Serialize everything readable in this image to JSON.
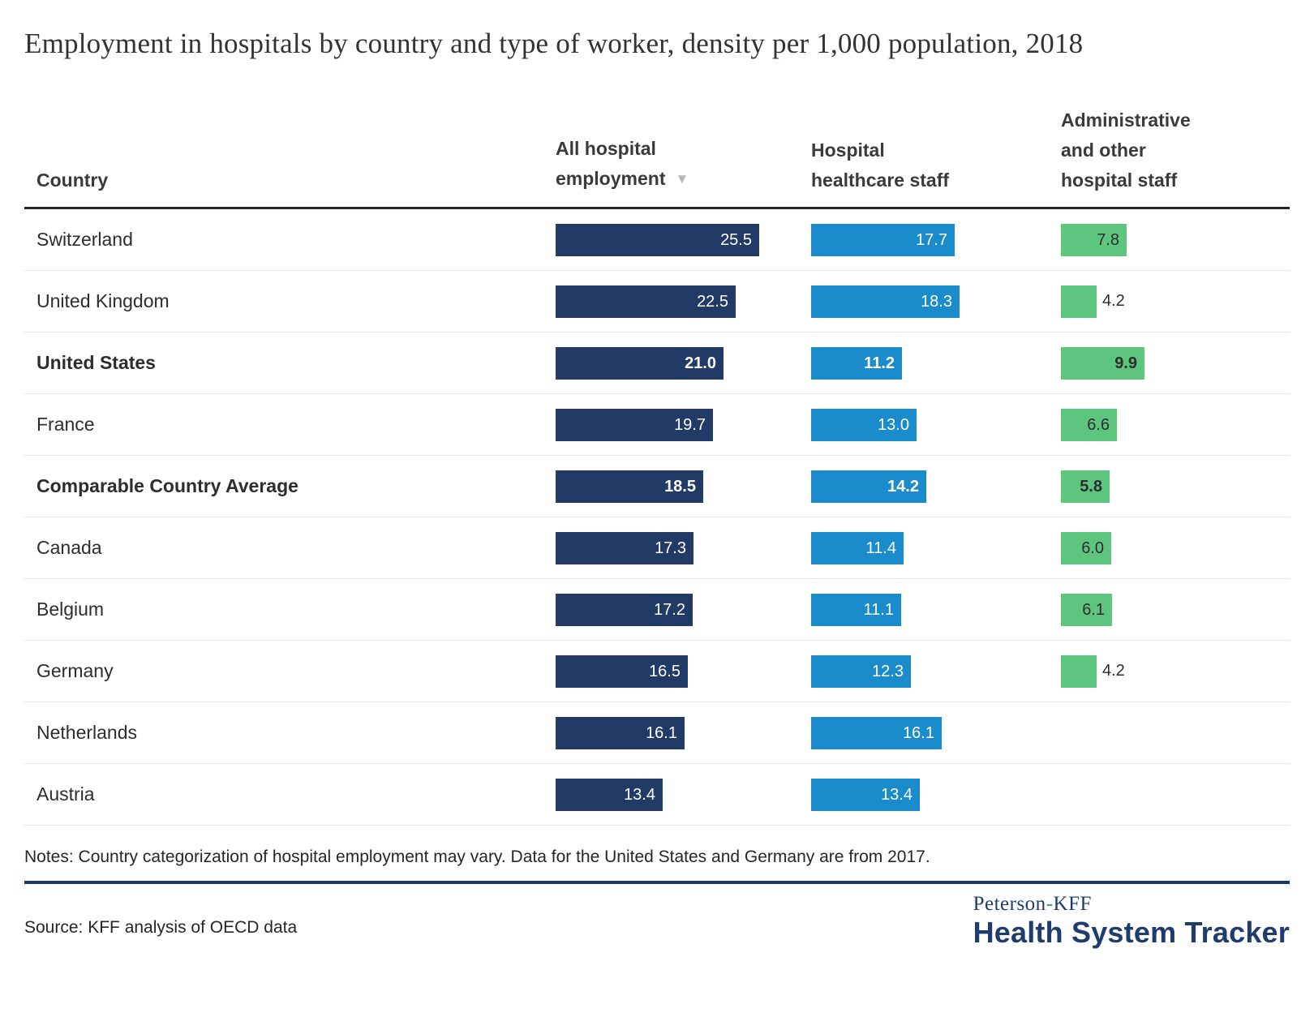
{
  "title": "Employment in hospitals by country and type of worker, density per 1,000 population, 2018",
  "icons": {
    "sort_descending": "▼"
  },
  "colors": {
    "bar_all_hospital": "#213a66",
    "bar_healthcare": "#1a8ccb",
    "bar_admin": "#5dc57e",
    "header_rule": "#272727",
    "footer_rule": "#1b3a6b",
    "logo_navy": "#1e3c6d",
    "logo_dash_green": "#43a06a"
  },
  "table": {
    "columns": [
      {
        "label": "Country"
      },
      {
        "label": "All hospital employment",
        "sorted": "descending"
      },
      {
        "label": "Hospital healthcare staff"
      },
      {
        "label": "Administrative and other hospital staff"
      }
    ],
    "rows": [
      {
        "country": "Switzerland",
        "bold": false,
        "all": 25.5,
        "healthcare": 17.7,
        "admin": 7.8
      },
      {
        "country": "United Kingdom",
        "bold": false,
        "all": 22.5,
        "healthcare": 18.3,
        "admin": 4.2
      },
      {
        "country": "United States",
        "bold": true,
        "all": 21.0,
        "healthcare": 11.2,
        "admin": 9.9
      },
      {
        "country": "France",
        "bold": false,
        "all": 19.7,
        "healthcare": 13.0,
        "admin": 6.6
      },
      {
        "country": "Comparable Country Average",
        "bold": true,
        "all": 18.5,
        "healthcare": 14.2,
        "admin": 5.8
      },
      {
        "country": "Canada",
        "bold": false,
        "all": 17.3,
        "healthcare": 11.4,
        "admin": 6.0
      },
      {
        "country": "Belgium",
        "bold": false,
        "all": 17.2,
        "healthcare": 11.1,
        "admin": 6.1
      },
      {
        "country": "Germany",
        "bold": false,
        "all": 16.5,
        "healthcare": 12.3,
        "admin": 4.2
      },
      {
        "country": "Netherlands",
        "bold": false,
        "all": 16.1,
        "healthcare": 16.1,
        "admin": null
      },
      {
        "country": "Austria",
        "bold": false,
        "all": 13.4,
        "healthcare": 13.4,
        "admin": null
      }
    ]
  },
  "notes": "Notes: Country categorization of hospital employment may vary. Data for the United States and Germany are from 2017.",
  "source": "Source: KFF analysis of OECD data",
  "logo": {
    "part1": "Peterson",
    "dash": "-",
    "part2": "KFF",
    "line2": "Health System Tracker"
  },
  "chart_data": {
    "type": "bar",
    "orientation": "horizontal",
    "title": "Employment in hospitals by country and type of worker, density per 1,000 population, 2018",
    "categories": [
      "Switzerland",
      "United Kingdom",
      "United States",
      "France",
      "Comparable Country Average",
      "Canada",
      "Belgium",
      "Germany",
      "Netherlands",
      "Austria"
    ],
    "series": [
      {
        "name": "All hospital employment",
        "color": "#213a66",
        "values": [
          25.5,
          22.5,
          21.0,
          19.7,
          18.5,
          17.3,
          17.2,
          16.5,
          16.1,
          13.4
        ]
      },
      {
        "name": "Hospital healthcare staff",
        "color": "#1a8ccb",
        "values": [
          17.7,
          18.3,
          11.2,
          13.0,
          14.2,
          11.4,
          11.1,
          12.3,
          16.1,
          13.4
        ]
      },
      {
        "name": "Administrative and other hospital staff",
        "color": "#5dc57e",
        "values": [
          7.8,
          4.2,
          9.9,
          6.6,
          5.8,
          6.0,
          6.1,
          4.2,
          null,
          null
        ]
      }
    ],
    "value_labels": "one_decimal_inside_bars",
    "sorted_by": "All hospital employment descending",
    "emphasized_rows": [
      "United States",
      "Comparable Country Average"
    ],
    "xlim": [
      0,
      27
    ],
    "grid": false,
    "legend_position": "column-headers"
  }
}
